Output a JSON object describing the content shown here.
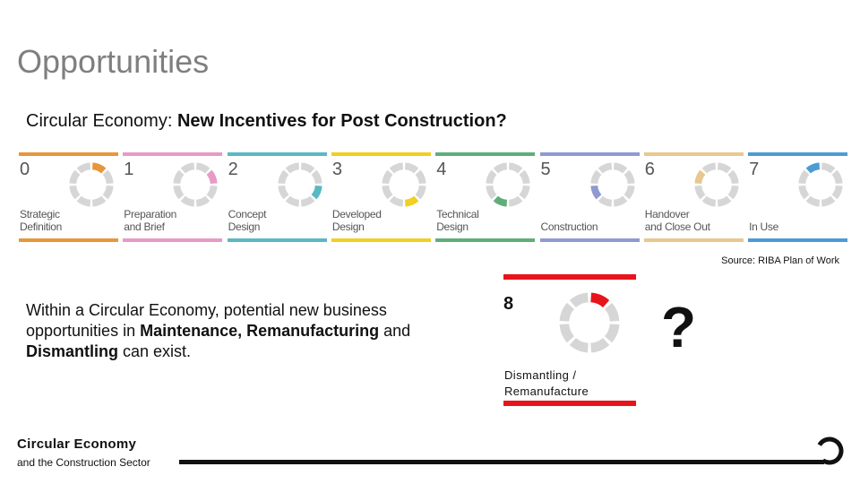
{
  "title": "Opportunities",
  "subtitle": {
    "prefix": "Circular Economy: ",
    "bold": "New Incentives for Post Construction?"
  },
  "stages": [
    {
      "number": "0",
      "line1": "Strategic",
      "line2": "Definition",
      "color": "#e8963a",
      "arc_start": 0.0
    },
    {
      "number": "1",
      "line1": "Preparation",
      "line2": "and Brief",
      "color": "#e89ac6",
      "arc_start": 0.125
    },
    {
      "number": "2",
      "line1": "Concept",
      "line2": "Design",
      "color": "#5ab8c4",
      "arc_start": 0.25
    },
    {
      "number": "3",
      "line1": "Developed",
      "line2": "Design",
      "color": "#f0d020",
      "arc_start": 0.375
    },
    {
      "number": "4",
      "line1": "Technical",
      "line2": "Design",
      "color": "#5fae7a",
      "arc_start": 0.5
    },
    {
      "number": "5",
      "line1": "",
      "line2": "Construction",
      "color": "#8e9ad0",
      "arc_start": 0.625
    },
    {
      "number": "6",
      "line1": "Handover",
      "line2": "and Close Out",
      "color": "#e8c890",
      "arc_start": 0.75
    },
    {
      "number": "7",
      "line1": "",
      "line2": "In Use",
      "color": "#4d9bd4",
      "arc_start": 0.875
    }
  ],
  "source": "Source: RIBA Plan of Work",
  "body": {
    "part1": "Within a Circular Economy, potential new business opportunities in ",
    "bold1": "Maintenance, Remanufacturing",
    "part2": " and ",
    "bold2": "Dismantling",
    "part3": " can exist."
  },
  "stage8": {
    "number": "8",
    "line1": "Dismantling /",
    "line2": "Remanufacture",
    "color": "#e8141b"
  },
  "question": "?",
  "footer": {
    "title": "Circular Economy",
    "subtitle": "and the Construction Sector"
  }
}
